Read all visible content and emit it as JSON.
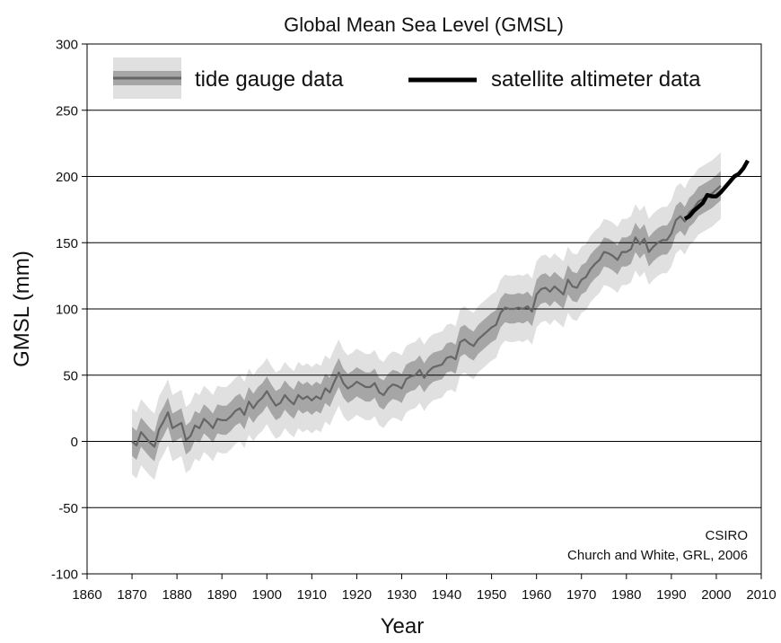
{
  "chart_data": {
    "type": "line",
    "title": "Global Mean Sea Level (GMSL)",
    "xlabel": "Year",
    "ylabel": "GMSL (mm)",
    "xlim": [
      1860,
      2010
    ],
    "ylim": [
      -100,
      300
    ],
    "xticks": [
      1860,
      1870,
      1880,
      1890,
      1900,
      1910,
      1920,
      1930,
      1940,
      1950,
      1960,
      1970,
      1980,
      1990,
      2000,
      2010
    ],
    "yticks": [
      -100,
      -50,
      0,
      50,
      100,
      150,
      200,
      250,
      300
    ],
    "grid": "horizontal",
    "legend_position": "top-left",
    "annotation_lines": [
      "CSIRO",
      "Church and White, GRL, 2006"
    ],
    "colors": {
      "tide_line": "#666666",
      "band_inner": "#a6a6a6",
      "band_outer": "#e0e0e0",
      "satellite_line": "#000000",
      "grid": "#000000"
    },
    "series": [
      {
        "name": "tide gauge data",
        "x": [
          1870,
          1871,
          1872,
          1873,
          1874,
          1875,
          1876,
          1877,
          1878,
          1879,
          1880,
          1881,
          1882,
          1883,
          1884,
          1885,
          1886,
          1887,
          1888,
          1889,
          1890,
          1891,
          1892,
          1893,
          1894,
          1895,
          1896,
          1897,
          1898,
          1899,
          1900,
          1901,
          1902,
          1903,
          1904,
          1905,
          1906,
          1907,
          1908,
          1909,
          1910,
          1911,
          1912,
          1913,
          1914,
          1915,
          1916,
          1917,
          1918,
          1919,
          1920,
          1921,
          1922,
          1923,
          1924,
          1925,
          1926,
          1927,
          1928,
          1929,
          1930,
          1931,
          1932,
          1933,
          1934,
          1935,
          1936,
          1937,
          1938,
          1939,
          1940,
          1941,
          1942,
          1943,
          1944,
          1945,
          1946,
          1947,
          1948,
          1949,
          1950,
          1951,
          1952,
          1953,
          1954,
          1955,
          1956,
          1957,
          1958,
          1959,
          1960,
          1961,
          1962,
          1963,
          1964,
          1965,
          1966,
          1967,
          1968,
          1969,
          1970,
          1971,
          1972,
          1973,
          1974,
          1975,
          1976,
          1977,
          1978,
          1979,
          1980,
          1981,
          1982,
          1983,
          1984,
          1985,
          1986,
          1987,
          1988,
          1989,
          1990,
          1991,
          1992,
          1993,
          1994,
          1995,
          1996,
          1997,
          1998,
          1999,
          2000,
          2001
        ],
        "values": [
          0,
          -3,
          7,
          3,
          -1,
          -4,
          9,
          15,
          22,
          10,
          12,
          14,
          1,
          4,
          12,
          10,
          17,
          14,
          10,
          17,
          16,
          16,
          19,
          23,
          25,
          20,
          30,
          25,
          30,
          33,
          38,
          32,
          27,
          29,
          35,
          31,
          28,
          35,
          32,
          34,
          31,
          34,
          32,
          40,
          37,
          45,
          52,
          44,
          40,
          42,
          45,
          43,
          41,
          41,
          44,
          37,
          35,
          40,
          43,
          42,
          40,
          47,
          49,
          50,
          54,
          48,
          53,
          56,
          57,
          58,
          63,
          64,
          62,
          75,
          77,
          74,
          72,
          77,
          80,
          83,
          86,
          88,
          97,
          101,
          100,
          100,
          101,
          100,
          102,
          98,
          111,
          115,
          116,
          113,
          117,
          114,
          111,
          122,
          117,
          116,
          122,
          124,
          130,
          134,
          137,
          143,
          142,
          140,
          137,
          143,
          143,
          145,
          154,
          149,
          153,
          143,
          147,
          150,
          152,
          152,
          157,
          167,
          170,
          166,
          173,
          176,
          181,
          183,
          185,
          187,
          190,
          193
        ],
        "band_inner": 11,
        "band_outer": 25
      },
      {
        "name": "satellite altimeter data",
        "x": [
          1993,
          1994,
          1995,
          1996,
          1997,
          1998,
          1999,
          2000,
          2001,
          2002,
          2003,
          2004,
          2005,
          2006,
          2007
        ],
        "values": [
          168,
          170,
          174,
          177,
          180,
          186,
          185,
          185,
          188,
          192,
          196,
          200,
          202,
          206,
          212
        ]
      }
    ]
  }
}
